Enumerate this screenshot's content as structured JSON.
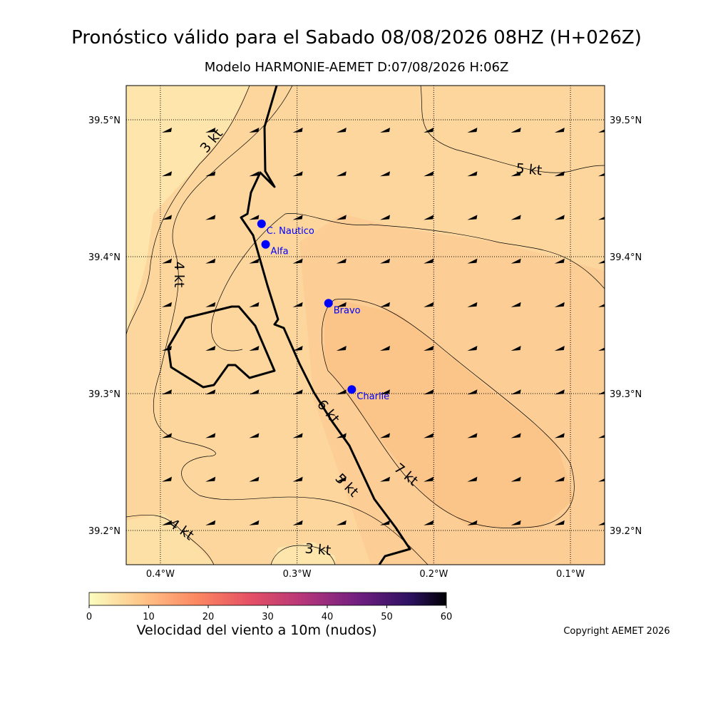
{
  "title": "Pronóstico válido para el Sabado 08/08/2026 08HZ (H+026Z)",
  "subtitle": "Modelo HARMONIE-AEMET D:07/08/2026 H:06Z",
  "map": {
    "lonlim": [
      -0.425,
      -0.075
    ],
    "latlim": [
      39.175,
      39.525
    ],
    "lonticks": [
      {
        "value": -0.4,
        "label": "0.4°W"
      },
      {
        "value": -0.3,
        "label": "0.3°W"
      },
      {
        "value": -0.2,
        "label": "0.2°W"
      },
      {
        "value": -0.1,
        "label": "0.1°W"
      }
    ],
    "latticks": [
      {
        "value": 39.5,
        "label": "39.5°N"
      },
      {
        "value": 39.4,
        "label": "39.4°N"
      },
      {
        "value": 39.3,
        "label": "39.3°N"
      },
      {
        "value": 39.2,
        "label": "39.2°N"
      }
    ],
    "stations": [
      {
        "name": "C. Nautico",
        "lon": -0.326,
        "lat": 39.424,
        "color": "#0000ff"
      },
      {
        "name": "Alfa",
        "lon": -0.323,
        "lat": 39.409,
        "color": "#0000ff"
      },
      {
        "name": "Bravo",
        "lon": -0.277,
        "lat": 39.366,
        "color": "#0000ff"
      },
      {
        "name": "Charlie",
        "lon": -0.26,
        "lat": 39.303,
        "color": "#0000ff"
      }
    ],
    "contour_labels": [
      "3 kt",
      "5 kt",
      "4 kt",
      "6 kt",
      "5 kt",
      "7 kt",
      "4 kt",
      "3 kt"
    ]
  },
  "colorbar": {
    "lim": [
      0,
      60
    ],
    "ticks": [
      0,
      10,
      20,
      30,
      40,
      50,
      60
    ],
    "label": "Velocidad del viento a 10m (nudos)"
  },
  "copyright": "Copyright AEMET 2026"
}
